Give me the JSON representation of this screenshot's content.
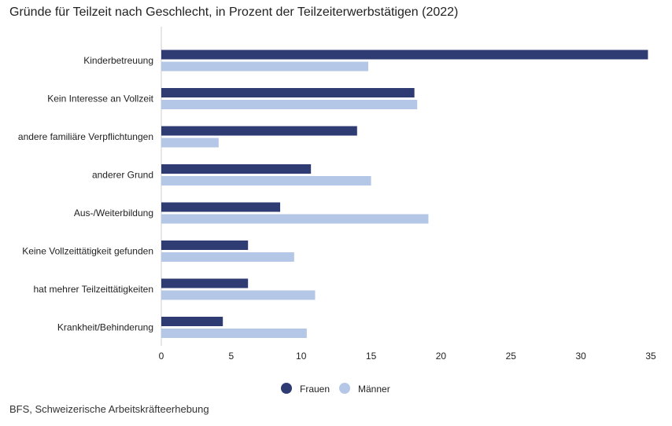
{
  "chart_data": {
    "type": "bar",
    "orientation": "horizontal",
    "title": "Gründe für Teilzeit nach Geschlecht, in Prozent der Teilzeiterwerbstätigen (2022)",
    "categories": [
      "Kinderbetreuung",
      "Kein Interesse an Vollzeit",
      "andere familiäre Verpflichtungen",
      "anderer Grund",
      "Aus-/Weiterbildung",
      "Keine Vollzeittätigkeit gefunden",
      "hat mehrer Teilzeittätigkeiten",
      "Krankheit/Behinderung"
    ],
    "series": [
      {
        "name": "Frauen",
        "color": "#2f3b73",
        "values": [
          34.8,
          18.1,
          14.0,
          10.7,
          8.5,
          6.2,
          6.2,
          4.4
        ]
      },
      {
        "name": "Männer",
        "color": "#b5c7e6",
        "values": [
          14.8,
          18.3,
          4.1,
          15.0,
          19.1,
          9.5,
          11.0,
          10.4
        ]
      }
    ],
    "xlim": [
      0,
      35
    ],
    "xticks": [
      "0",
      "5",
      "10",
      "15",
      "20",
      "25",
      "30",
      "35"
    ],
    "xlabel": "",
    "ylabel": "",
    "grid": false,
    "legend_position": "bottom-center"
  },
  "source": "BFS, Schweizerische Arbeitskräfteerhebung"
}
